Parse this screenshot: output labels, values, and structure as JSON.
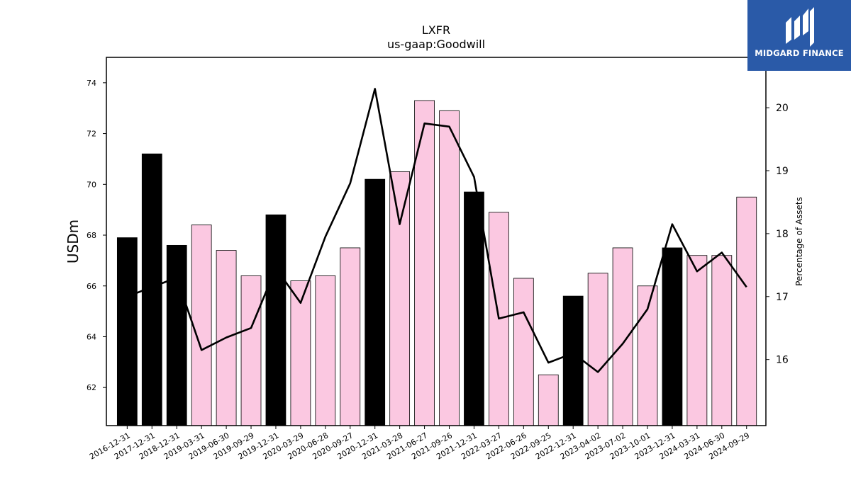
{
  "chart_data": {
    "type": "bar",
    "title": "LXFR",
    "subtitle": "us-gaap:Goodwill",
    "ylabel": "USDm",
    "y2label": "Percentage of Assets",
    "categories": [
      "2016-12-31",
      "2017-12-31",
      "2018-12-31",
      "2019-03-31",
      "2019-06-30",
      "2019-09-29",
      "2019-12-31",
      "2020-03-29",
      "2020-06-28",
      "2020-09-27",
      "2020-12-31",
      "2021-03-28",
      "2021-06-27",
      "2021-09-26",
      "2021-12-31",
      "2022-03-27",
      "2022-06-26",
      "2022-09-25",
      "2022-12-31",
      "2023-04-02",
      "2023-07-02",
      "2023-10-01",
      "2023-12-31",
      "2024-03-31",
      "2024-06-30",
      "2024-09-29"
    ],
    "series": [
      {
        "type": "bar",
        "axis": "left",
        "values": [
          67.9,
          71.2,
          67.6,
          68.4,
          67.4,
          66.4,
          68.8,
          66.2,
          66.4,
          67.5,
          70.2,
          70.5,
          73.3,
          72.9,
          69.7,
          68.9,
          66.3,
          62.5,
          65.6,
          66.5,
          67.5,
          66.0,
          67.5,
          67.2,
          67.2,
          69.5
        ],
        "annual": [
          true,
          true,
          true,
          false,
          false,
          false,
          true,
          false,
          false,
          false,
          true,
          false,
          false,
          false,
          true,
          false,
          false,
          false,
          true,
          false,
          false,
          false,
          true,
          false,
          false,
          false
        ]
      },
      {
        "type": "line",
        "axis": "right",
        "values": [
          17.0,
          17.15,
          17.3,
          16.15,
          16.35,
          16.5,
          17.45,
          16.9,
          17.95,
          18.8,
          20.3,
          18.15,
          19.75,
          19.7,
          18.9,
          16.65,
          16.75,
          15.95,
          16.1,
          15.8,
          16.25,
          16.8,
          18.15,
          17.4,
          17.7,
          17.15
        ]
      }
    ],
    "ylim": [
      60.5,
      75.0
    ],
    "y2lim": [
      14.95,
      20.8
    ],
    "yticks": [
      62,
      64,
      66,
      68,
      70,
      72,
      74
    ],
    "y2ticks": [
      16,
      17,
      18,
      19,
      20
    ],
    "colors": {
      "annual": "#000000",
      "quarterly": "#fbc8e1",
      "line": "#000000"
    },
    "grid": false,
    "legend": "none"
  },
  "brand": {
    "name": "MIDGARD FINANCE",
    "background": "#2a5aa8"
  }
}
